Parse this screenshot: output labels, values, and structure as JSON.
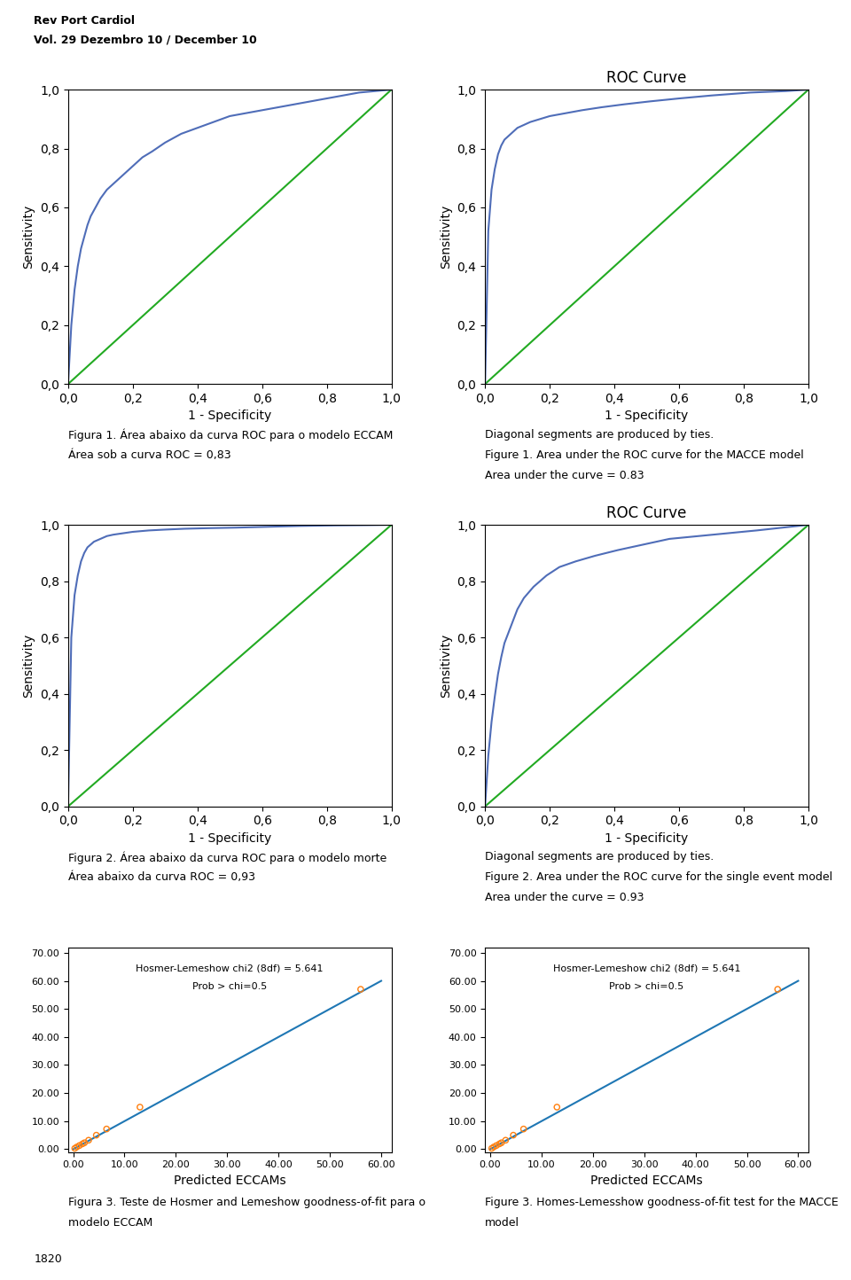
{
  "header": [
    "Rev Port Cardiol",
    "Vol. 29 Dezembro 10 / December 10"
  ],
  "footer": "1820",
  "chart_data": [
    {
      "type": "line",
      "xlabel": "1 - Specificity",
      "ylabel": "Sensitivity",
      "xlim": [
        0,
        1
      ],
      "ylim": [
        0,
        1
      ],
      "xticks": [
        {
          "value": 0.0,
          "label": "0,0"
        },
        {
          "value": 0.2,
          "label": "0,2"
        },
        {
          "value": 0.4,
          "label": "0,4"
        },
        {
          "value": 0.6,
          "label": "0,6"
        },
        {
          "value": 0.8,
          "label": "0,8"
        },
        {
          "value": 1.0,
          "label": "1,0"
        }
      ],
      "yticks": [
        {
          "value": 0.0,
          "label": "0,0"
        },
        {
          "value": 0.2,
          "label": "0,2"
        },
        {
          "value": 0.4,
          "label": "0,4"
        },
        {
          "value": 0.6,
          "label": "0,6"
        },
        {
          "value": 0.8,
          "label": "0,8"
        },
        {
          "value": 1.0,
          "label": "1,0"
        }
      ],
      "series": [
        {
          "x": [
            0,
            1
          ],
          "values": [
            0,
            1
          ],
          "color": "#22aa22"
        },
        {
          "x": [
            0.0,
            0.01,
            0.02,
            0.03,
            0.04,
            0.05,
            0.06,
            0.07,
            0.08,
            0.09,
            0.1,
            0.12,
            0.14,
            0.16,
            0.18,
            0.2,
            0.23,
            0.26,
            0.3,
            0.35,
            0.4,
            0.45,
            0.5,
            0.55,
            0.6,
            0.65,
            0.7,
            0.75,
            0.8,
            0.85,
            0.9,
            0.95,
            1.0
          ],
          "values": [
            0.0,
            0.2,
            0.32,
            0.4,
            0.46,
            0.5,
            0.54,
            0.57,
            0.59,
            0.61,
            0.63,
            0.66,
            0.68,
            0.7,
            0.72,
            0.74,
            0.77,
            0.79,
            0.82,
            0.85,
            0.87,
            0.89,
            0.91,
            0.92,
            0.93,
            0.94,
            0.95,
            0.96,
            0.97,
            0.98,
            0.99,
            0.995,
            1.0
          ],
          "color": "#4f6db8"
        }
      ],
      "caption": [
        "Figura 1. Área abaixo da curva ROC para o modelo ECCAM",
        "Área sob a curva ROC = 0,83"
      ]
    },
    {
      "type": "line",
      "title": "ROC Curve",
      "xlabel": "1 - Specificity",
      "ylabel": "Sensitivity",
      "xlim": [
        0,
        1
      ],
      "ylim": [
        0,
        1
      ],
      "xticks": [
        {
          "value": 0.0,
          "label": "0,0"
        },
        {
          "value": 0.2,
          "label": "0,2"
        },
        {
          "value": 0.4,
          "label": "0,4"
        },
        {
          "value": 0.6,
          "label": "0,6"
        },
        {
          "value": 0.8,
          "label": "0,8"
        },
        {
          "value": 1.0,
          "label": "1,0"
        }
      ],
      "yticks": [
        {
          "value": 0.0,
          "label": "0,0"
        },
        {
          "value": 0.2,
          "label": "0,2"
        },
        {
          "value": 0.4,
          "label": "0,4"
        },
        {
          "value": 0.6,
          "label": "0,6"
        },
        {
          "value": 0.8,
          "label": "0,8"
        },
        {
          "value": 1.0,
          "label": "1,0"
        }
      ],
      "series": [
        {
          "x": [
            0,
            1
          ],
          "values": [
            0,
            1
          ],
          "color": "#22aa22"
        },
        {
          "x": [
            0.0,
            0.01,
            0.02,
            0.03,
            0.04,
            0.05,
            0.06,
            0.07,
            0.08,
            0.09,
            0.1,
            0.12,
            0.14,
            0.17,
            0.2,
            0.25,
            0.3,
            0.36,
            0.43,
            0.51,
            0.6,
            0.7,
            0.82,
            0.93,
            1.0
          ],
          "values": [
            0.0,
            0.52,
            0.66,
            0.73,
            0.78,
            0.81,
            0.83,
            0.84,
            0.85,
            0.86,
            0.87,
            0.88,
            0.89,
            0.9,
            0.91,
            0.92,
            0.93,
            0.94,
            0.95,
            0.96,
            0.97,
            0.98,
            0.99,
            0.995,
            1.0
          ],
          "color": "#4f6db8"
        }
      ],
      "caption": [
        "Diagonal segments are produced by ties.",
        "Figure 1. Area under the ROC curve for the MACCE model",
        "Area under the curve = 0.83"
      ]
    },
    {
      "type": "line",
      "xlabel": "1 - Specificity",
      "ylabel": "Sensitivity",
      "xlim": [
        0,
        1
      ],
      "ylim": [
        0,
        1
      ],
      "xticks": [
        {
          "value": 0.0,
          "label": "0,0"
        },
        {
          "value": 0.2,
          "label": "0,2"
        },
        {
          "value": 0.4,
          "label": "0,4"
        },
        {
          "value": 0.6,
          "label": "0,6"
        },
        {
          "value": 0.8,
          "label": "0,8"
        },
        {
          "value": 1.0,
          "label": "1,0"
        }
      ],
      "yticks": [
        {
          "value": 0.0,
          "label": "0,0"
        },
        {
          "value": 0.2,
          "label": "0,2"
        },
        {
          "value": 0.4,
          "label": "0,4"
        },
        {
          "value": 0.6,
          "label": "0,6"
        },
        {
          "value": 0.8,
          "label": "0,8"
        },
        {
          "value": 1.0,
          "label": "1,0"
        }
      ],
      "series": [
        {
          "x": [
            0,
            1
          ],
          "values": [
            0,
            1
          ],
          "color": "#22aa22"
        },
        {
          "x": [
            0.0,
            0.01,
            0.02,
            0.03,
            0.04,
            0.05,
            0.06,
            0.07,
            0.08,
            0.1,
            0.12,
            0.14,
            0.17,
            0.2,
            0.25,
            0.3,
            0.36,
            0.43,
            0.52,
            0.62,
            0.72,
            0.83,
            0.93,
            1.0
          ],
          "values": [
            0.0,
            0.6,
            0.75,
            0.82,
            0.87,
            0.9,
            0.92,
            0.93,
            0.94,
            0.95,
            0.96,
            0.965,
            0.97,
            0.975,
            0.98,
            0.983,
            0.986,
            0.988,
            0.99,
            0.993,
            0.996,
            0.998,
            0.999,
            1.0
          ],
          "color": "#4f6db8"
        }
      ],
      "caption": [
        "Figura 2. Área abaixo da curva ROC para o modelo morte",
        "Área abaixo da curva ROC = 0,93"
      ]
    },
    {
      "type": "line",
      "title": "ROC Curve",
      "xlabel": "1 - Specificity",
      "ylabel": "Sensitivity",
      "xlim": [
        0,
        1
      ],
      "ylim": [
        0,
        1
      ],
      "xticks": [
        {
          "value": 0.0,
          "label": "0,0"
        },
        {
          "value": 0.2,
          "label": "0,2"
        },
        {
          "value": 0.4,
          "label": "0,4"
        },
        {
          "value": 0.6,
          "label": "0,6"
        },
        {
          "value": 0.8,
          "label": "0,8"
        },
        {
          "value": 1.0,
          "label": "1,0"
        }
      ],
      "yticks": [
        {
          "value": 0.0,
          "label": "0,0"
        },
        {
          "value": 0.2,
          "label": "0,2"
        },
        {
          "value": 0.4,
          "label": "0,4"
        },
        {
          "value": 0.6,
          "label": "0,6"
        },
        {
          "value": 0.8,
          "label": "0,8"
        },
        {
          "value": 1.0,
          "label": "1,0"
        }
      ],
      "series": [
        {
          "x": [
            0,
            1
          ],
          "values": [
            0,
            1
          ],
          "color": "#22aa22"
        },
        {
          "x": [
            0.0,
            0.01,
            0.02,
            0.03,
            0.04,
            0.05,
            0.06,
            0.08,
            0.1,
            0.12,
            0.15,
            0.19,
            0.23,
            0.28,
            0.34,
            0.41,
            0.49,
            0.57,
            0.66,
            0.75,
            0.84,
            0.92,
            1.0
          ],
          "values": [
            0.0,
            0.18,
            0.3,
            0.39,
            0.47,
            0.53,
            0.58,
            0.64,
            0.7,
            0.74,
            0.78,
            0.82,
            0.85,
            0.87,
            0.89,
            0.91,
            0.93,
            0.95,
            0.96,
            0.97,
            0.98,
            0.99,
            1.0
          ],
          "color": "#4f6db8"
        }
      ],
      "caption": [
        "Diagonal segments are produced by ties.",
        "Figure 2. Area under the ROC curve for the single event model",
        "Area under the curve = 0.93"
      ]
    },
    {
      "type": "scatter",
      "xlabel": "Predicted ECCAMs",
      "xlim": [
        -1,
        62
      ],
      "ylim": [
        -1,
        72
      ],
      "xticks": [
        {
          "value": 0,
          "label": "0.00"
        },
        {
          "value": 10,
          "label": "10.00"
        },
        {
          "value": 20,
          "label": "20.00"
        },
        {
          "value": 30,
          "label": "30.00"
        },
        {
          "value": 40,
          "label": "40.00"
        },
        {
          "value": 50,
          "label": "50.00"
        },
        {
          "value": 60,
          "label": "60.00"
        }
      ],
      "yticks": [
        {
          "value": 0,
          "label": "0.00"
        },
        {
          "value": 10,
          "label": "10.00"
        },
        {
          "value": 20,
          "label": "20.00"
        },
        {
          "value": 30,
          "label": "30.00"
        },
        {
          "value": 40,
          "label": "40.00"
        },
        {
          "value": 50,
          "label": "50.00"
        },
        {
          "value": 60,
          "label": "60.00"
        },
        {
          "value": 70,
          "label": "70.00"
        }
      ],
      "series": [
        {
          "type": "line",
          "x": [
            0,
            60
          ],
          "values": [
            0,
            60
          ]
        },
        {
          "type": "scatter",
          "marker": "o",
          "x": [
            0.3,
            0.7,
            1.2,
            1.8,
            2.2,
            3.0,
            4.5,
            6.5,
            13.0,
            56.0
          ],
          "values": [
            0.3,
            0.8,
            1.3,
            1.9,
            2.3,
            3.2,
            5.0,
            7.2,
            15.0,
            57.0
          ]
        }
      ],
      "annotations": [
        "Hosmer-Lemeshow chi2 (8df) = 5.641",
        "Prob > chi=0.5"
      ],
      "caption": [
        "Figura 3. Teste de Hosmer and Lemeshow goodness-of-fit para o",
        "modelo ECCAM"
      ]
    },
    {
      "type": "scatter",
      "xlabel": "Predicted ECCAMs",
      "xlim": [
        -1,
        62
      ],
      "ylim": [
        -1,
        72
      ],
      "xticks": [
        {
          "value": 0,
          "label": "0.00"
        },
        {
          "value": 10,
          "label": "10.00"
        },
        {
          "value": 20,
          "label": "20.00"
        },
        {
          "value": 30,
          "label": "30.00"
        },
        {
          "value": 40,
          "label": "40.00"
        },
        {
          "value": 50,
          "label": "50.00"
        },
        {
          "value": 60,
          "label": "60.00"
        }
      ],
      "yticks": [
        {
          "value": 0,
          "label": "0.00"
        },
        {
          "value": 10,
          "label": "10.00"
        },
        {
          "value": 20,
          "label": "20.00"
        },
        {
          "value": 30,
          "label": "30.00"
        },
        {
          "value": 40,
          "label": "40.00"
        },
        {
          "value": 50,
          "label": "50.00"
        },
        {
          "value": 60,
          "label": "60.00"
        },
        {
          "value": 70,
          "label": "70.00"
        }
      ],
      "series": [
        {
          "type": "line",
          "x": [
            0,
            60
          ],
          "values": [
            0,
            60
          ]
        },
        {
          "type": "scatter",
          "marker": "o",
          "x": [
            0.3,
            0.7,
            1.2,
            1.8,
            2.2,
            3.0,
            4.5,
            6.5,
            13.0,
            56.0
          ],
          "values": [
            0.3,
            0.8,
            1.3,
            1.9,
            2.3,
            3.2,
            5.0,
            7.2,
            15.0,
            57.0
          ]
        }
      ],
      "annotations": [
        "Hosmer-Lemeshow chi2 (8df) = 5.641",
        "Prob > chi=0.5"
      ],
      "caption": [
        "Figure 3. Homes-Lemesshow goodness-of-fit test for the MACCE",
        "model"
      ]
    }
  ]
}
